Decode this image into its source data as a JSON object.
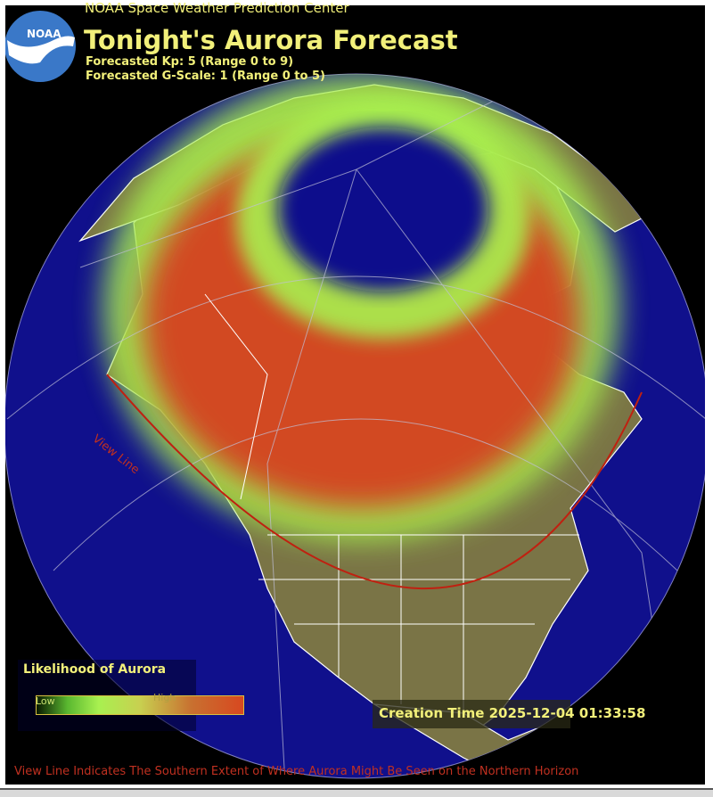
{
  "header": {
    "organization": "NOAA Space Weather Prediction Center",
    "logo_text": "NOAA",
    "title": "Tonight's Aurora Forecast",
    "kp_line": "Forecasted Kp: 5 (Range 0 to 9)",
    "gscale_line": "Forecasted G-Scale: 1 (Range 0 to 5)"
  },
  "forecast": {
    "kp": 5,
    "kp_range": [
      0,
      9
    ],
    "g_scale": 1,
    "g_scale_range": [
      0,
      5
    ]
  },
  "legend": {
    "title": "Likelihood of Aurora",
    "low_label": "Low",
    "high_label": "High"
  },
  "map": {
    "view_line_label": "View Line",
    "creation_time": "Creation Time 2025-12-04 01:33:58",
    "footer_note": "View Line Indicates The Southern Extent of Where Aurora Might Be Seen on the Northern Horizon"
  },
  "colors": {
    "ocean": "#10108c",
    "land": "#7a7446",
    "aurora_low": "#a8f050",
    "aurora_high": "#d84820",
    "view_line": "#c02010",
    "text": "#f2f07a"
  }
}
